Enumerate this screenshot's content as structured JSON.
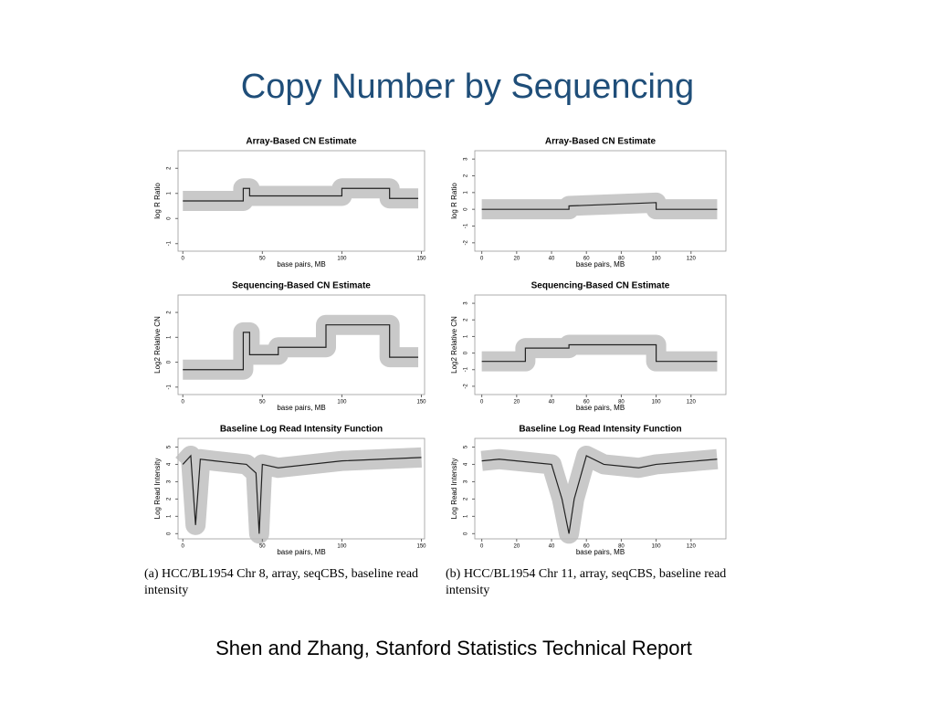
{
  "title": "Copy Number by Sequencing",
  "chart_data": [
    {
      "type": "line",
      "title": "Array-Based CN Estimate",
      "x_label": "base pairs, MB",
      "y_label": "log R Ratio",
      "x": [
        0,
        38,
        38,
        42,
        42,
        100,
        100,
        130,
        130,
        148
      ],
      "values": [
        0.7,
        0.7,
        1.2,
        1.2,
        0.9,
        0.9,
        1.2,
        1.2,
        0.8,
        0.8
      ],
      "xlim": [
        -3,
        152
      ],
      "ylim": [
        -1.3,
        2.7
      ],
      "xticks": [
        0,
        50,
        100,
        150
      ],
      "yticks": [
        -1,
        0,
        1,
        2
      ]
    },
    {
      "type": "line",
      "title": "Array-Based CN Estimate",
      "x_label": "base pairs, MB",
      "y_label": "log R Ratio",
      "x": [
        0,
        50,
        50,
        100,
        100,
        135
      ],
      "values": [
        0,
        0,
        0.2,
        0.4,
        0,
        0
      ],
      "xlim": [
        -4,
        140
      ],
      "ylim": [
        -2.5,
        3.5
      ],
      "xticks": [
        0,
        20,
        40,
        60,
        80,
        100,
        120
      ],
      "yticks": [
        -2,
        -1,
        0,
        1,
        2,
        3
      ]
    },
    {
      "type": "line",
      "title": "Sequencing-Based CN Estimate",
      "x_label": "base pairs, MB",
      "y_label": "Log2 Relative CN",
      "x": [
        0,
        38,
        38,
        42,
        42,
        60,
        60,
        90,
        90,
        130,
        130,
        148
      ],
      "values": [
        -0.3,
        -0.3,
        1.2,
        1.2,
        0.3,
        0.3,
        0.6,
        0.6,
        1.5,
        1.5,
        0.2,
        0.2
      ],
      "xlim": [
        -3,
        152
      ],
      "ylim": [
        -1.3,
        2.7
      ],
      "xticks": [
        0,
        50,
        100,
        150
      ],
      "yticks": [
        -1,
        0,
        1,
        2
      ]
    },
    {
      "type": "line",
      "title": "Sequencing-Based CN Estimate",
      "x_label": "base pairs, MB",
      "y_label": "Log2 Relative CN",
      "x": [
        0,
        25,
        25,
        50,
        50,
        100,
        100,
        135
      ],
      "values": [
        -0.5,
        -0.5,
        0.3,
        0.3,
        0.5,
        0.5,
        -0.5,
        -0.5
      ],
      "xlim": [
        -4,
        140
      ],
      "ylim": [
        -2.5,
        3.5
      ],
      "xticks": [
        0,
        20,
        40,
        60,
        80,
        100,
        120
      ],
      "yticks": [
        -2,
        -1,
        0,
        1,
        2,
        3
      ]
    },
    {
      "type": "line",
      "title": "Baseline Log Read Intensity Function",
      "x_label": "base pairs, MB",
      "y_label": "Log Read Intensity",
      "x": [
        0,
        5,
        8,
        11,
        20,
        40,
        46,
        48,
        50,
        60,
        100,
        150
      ],
      "values": [
        4,
        4.5,
        0.5,
        4.3,
        4.2,
        4,
        3.5,
        0,
        4,
        3.8,
        4.2,
        4.4
      ],
      "xlim": [
        -3,
        152
      ],
      "ylim": [
        -0.3,
        5.5
      ],
      "xticks": [
        0,
        50,
        100,
        150
      ],
      "yticks": [
        0,
        1,
        2,
        3,
        4,
        5
      ]
    },
    {
      "type": "line",
      "title": "Baseline Log Read Intensity Function",
      "x_label": "base pairs, MB",
      "y_label": "Log Read Intensity",
      "x": [
        0,
        10,
        40,
        46,
        50,
        53,
        60,
        70,
        90,
        100,
        135
      ],
      "values": [
        4.2,
        4.3,
        4,
        2,
        0,
        2,
        4.5,
        4,
        3.8,
        4,
        4.3
      ],
      "xlim": [
        -4,
        140
      ],
      "ylim": [
        -0.3,
        5.5
      ],
      "xticks": [
        0,
        20,
        40,
        60,
        80,
        100,
        120
      ],
      "yticks": [
        0,
        1,
        2,
        3,
        4,
        5
      ]
    }
  ],
  "captions": [
    "(a) HCC/BL1954 Chr 8, array, seqCBS, baseline read intensity",
    "(b) HCC/BL1954 Chr 11, array, seqCBS, baseline read intensity"
  ],
  "footer": "Shen and Zhang, Stanford Statistics Technical Report"
}
